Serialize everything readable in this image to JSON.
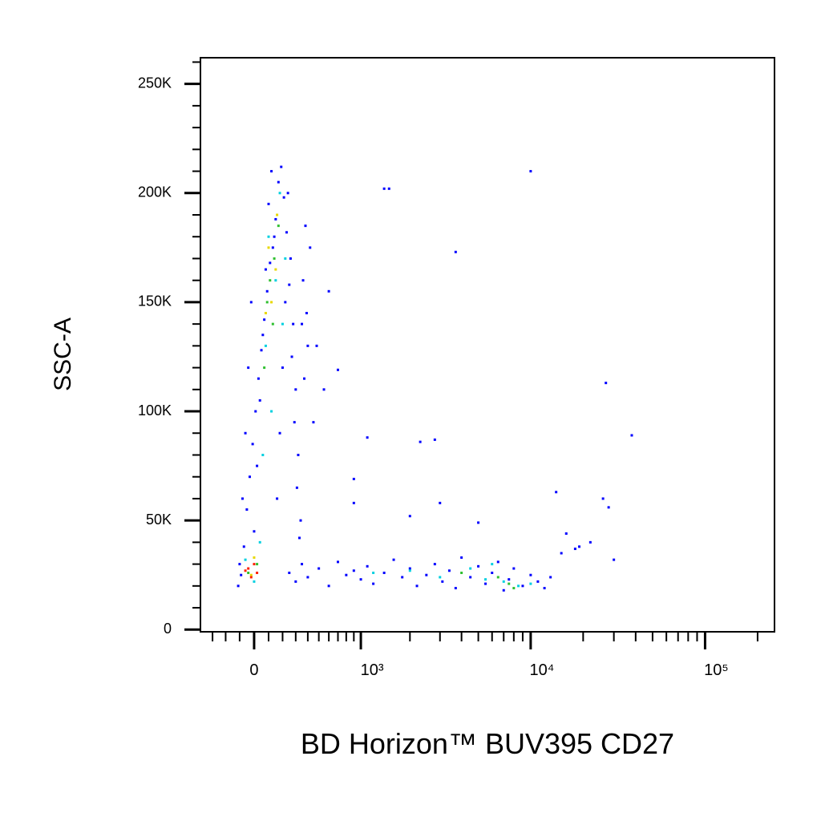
{
  "chart_data": {
    "type": "scatter",
    "x_label": "BD Horizon™ BUV395 CD27",
    "y_label": "SSC-A",
    "xscale": "biexponential",
    "xlim": [
      -400,
      250000
    ],
    "xticks": [
      0,
      {
        "value": 1000,
        "label": "10³"
      },
      {
        "value": 10000,
        "label": "10⁴"
      },
      {
        "value": 100000,
        "label": "10⁵"
      }
    ],
    "xminor_ticks": [
      -300,
      -200,
      -100,
      100,
      200,
      300,
      400,
      500,
      600,
      700,
      800,
      900,
      2000,
      3000,
      4000,
      5000,
      6000,
      7000,
      8000,
      9000,
      20000,
      30000,
      40000,
      50000,
      60000,
      70000,
      80000,
      90000,
      200000
    ],
    "ylim": [
      -1000,
      262000
    ],
    "yticks": [
      0,
      {
        "value": 50000,
        "label": "50K"
      },
      {
        "value": 100000,
        "label": "100K"
      },
      {
        "value": 150000,
        "label": "150K"
      },
      {
        "value": 200000,
        "label": "200K"
      },
      {
        "value": 250000,
        "label": "250K"
      }
    ],
    "yminor_ticks": [
      10000,
      20000,
      30000,
      40000,
      60000,
      70000,
      80000,
      90000,
      110000,
      120000,
      130000,
      140000,
      160000,
      170000,
      180000,
      190000,
      210000,
      220000,
      230000,
      240000,
      260000
    ],
    "series": [
      {
        "color": "#0000ff",
        "x": [
          -100,
          -80,
          -60,
          -40,
          -20,
          0,
          20,
          40,
          60,
          80,
          100,
          120,
          140,
          160,
          180,
          200,
          220,
          240,
          260,
          280,
          300,
          320,
          340,
          360,
          380,
          400,
          -110,
          -90,
          -70,
          -50,
          -30,
          -10,
          10,
          30,
          50,
          70,
          90,
          110,
          130,
          150,
          170,
          190,
          210,
          230,
          250,
          270,
          290,
          310,
          330,
          350,
          370,
          390,
          420,
          600,
          700,
          480,
          450,
          550,
          250,
          300,
          350,
          400,
          500,
          600,
          700,
          800,
          900,
          1000,
          1100,
          1200,
          1400,
          1600,
          1800,
          2000,
          2200,
          2500,
          2800,
          3100,
          3400,
          3700,
          4000,
          4500,
          5000,
          5500,
          6000,
          6500,
          7000,
          7500,
          8000,
          9000,
          10000,
          11000,
          12000,
          13000,
          1400,
          1500,
          10000,
          3700,
          1100,
          2300,
          2800,
          27000,
          38000,
          900,
          900,
          2000,
          3000,
          5000,
          14000,
          16000,
          19000,
          22000,
          26000,
          28000,
          30000,
          18000,
          15000
        ],
        "values": [
          30000,
          60000,
          90000,
          120000,
          150000,
          45000,
          75000,
          105000,
          135000,
          165000,
          195000,
          210000,
          180000,
          60000,
          90000,
          120000,
          150000,
          200000,
          170000,
          140000,
          110000,
          80000,
          50000,
          160000,
          185000,
          130000,
          20000,
          25000,
          38000,
          55000,
          70000,
          85000,
          100000,
          115000,
          128000,
          142000,
          155000,
          168000,
          175000,
          188000,
          205000,
          212000,
          198000,
          182000,
          158000,
          125000,
          95000,
          65000,
          42000,
          140000,
          115000,
          145000,
          175000,
          155000,
          119000,
          130000,
          95000,
          110000,
          26000,
          22000,
          30000,
          24000,
          28000,
          20000,
          31000,
          25000,
          27000,
          23000,
          29000,
          21000,
          26000,
          32000,
          24000,
          28000,
          20000,
          25000,
          30000,
          22000,
          27000,
          19000,
          33000,
          24000,
          29000,
          21000,
          26000,
          31000,
          18000,
          23000,
          28000,
          20000,
          25000,
          22000,
          19000,
          24000,
          202000,
          202000,
          210000,
          173000,
          88000,
          86000,
          87000,
          113000,
          89000,
          69000,
          58000,
          52000,
          58000,
          49000,
          63000,
          44000,
          38000,
          40000,
          60000,
          56000,
          32000,
          37000,
          35000
        ]
      },
      {
        "color": "#00d0e0",
        "x": [
          -60,
          0,
          40,
          100,
          150,
          200,
          120,
          60,
          180,
          220,
          80,
          2000,
          3000,
          4500,
          5500,
          7000,
          8500,
          1200,
          6000,
          10000
        ],
        "values": [
          32000,
          22000,
          40000,
          180000,
          160000,
          140000,
          100000,
          80000,
          200000,
          170000,
          130000,
          27000,
          24000,
          28000,
          23000,
          22000,
          20000,
          26000,
          30000,
          21000
        ]
      },
      {
        "color": "#30c030",
        "x": [
          -40,
          20,
          90,
          140,
          170,
          110,
          70,
          130,
          4000,
          6500,
          7500,
          8000
        ],
        "values": [
          26000,
          30000,
          150000,
          170000,
          185000,
          160000,
          120000,
          140000,
          26000,
          24000,
          21000,
          19000
        ]
      },
      {
        "color": "#e8d800",
        "x": [
          100,
          150,
          120,
          80,
          160,
          0,
          -20
        ],
        "values": [
          175000,
          165000,
          150000,
          145000,
          190000,
          33000,
          25000
        ]
      },
      {
        "color": "#ff2000",
        "x": [
          -40,
          -20,
          0,
          -60,
          20
        ],
        "values": [
          28000,
          24000,
          30000,
          27000,
          26000
        ]
      }
    ]
  }
}
